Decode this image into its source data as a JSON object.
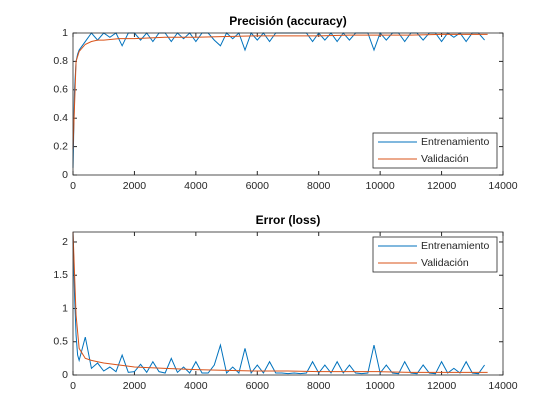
{
  "chart_data": [
    {
      "type": "line",
      "title": "Precisión (accuracy)",
      "xlim": [
        0,
        14000
      ],
      "xticks": [
        0,
        2000,
        4000,
        6000,
        8000,
        10000,
        12000,
        14000
      ],
      "ylim": [
        0,
        1
      ],
      "yticks": [
        0,
        0.2,
        0.4,
        0.6,
        0.8,
        1
      ],
      "legend": "southeast",
      "box": true,
      "series": [
        {
          "name": "Entrenamiento",
          "color": "#0072bd",
          "x": [
            0,
            50,
            100,
            150,
            200,
            400,
            600,
            800,
            1000,
            1200,
            1400,
            1600,
            1800,
            2000,
            2200,
            2400,
            2600,
            2800,
            3000,
            3200,
            3400,
            3600,
            3800,
            4000,
            4200,
            4400,
            4600,
            4800,
            5000,
            5200,
            5400,
            5600,
            5800,
            6000,
            6200,
            6400,
            6600,
            6800,
            7000,
            7200,
            7400,
            7600,
            7800,
            8000,
            8200,
            8400,
            8600,
            8800,
            9000,
            9200,
            9400,
            9600,
            9800,
            10000,
            10200,
            10400,
            10600,
            10800,
            11000,
            11200,
            11400,
            11600,
            11800,
            12000,
            12200,
            12400,
            12600,
            12800,
            13000,
            13200,
            13400
          ],
          "values": [
            0.05,
            0.6,
            0.8,
            0.85,
            0.88,
            0.94,
            1,
            0.95,
            1,
            0.97,
            1,
            0.91,
            1,
            1,
            0.95,
            1,
            0.94,
            1,
            1,
            0.94,
            1,
            0.96,
            1,
            0.94,
            1,
            1,
            0.95,
            0.91,
            1,
            0.96,
            1,
            0.88,
            1,
            0.95,
            1,
            0.94,
            1,
            1,
            1,
            1,
            1,
            1,
            0.94,
            1,
            0.95,
            1,
            0.94,
            1,
            0.95,
            1,
            1,
            1,
            0.88,
            1,
            0.95,
            1,
            1,
            0.94,
            1,
            1,
            0.95,
            1,
            1,
            0.94,
            1,
            0.97,
            1,
            0.94,
            1,
            1,
            0.95
          ]
        },
        {
          "name": "Validación",
          "color": "#d95319",
          "x": [
            0,
            100,
            200,
            400,
            600,
            800,
            1000,
            1500,
            2000,
            3000,
            4000,
            5000,
            6000,
            7000,
            8000,
            9000,
            10000,
            11000,
            12000,
            13000,
            13500
          ],
          "values": [
            0.18,
            0.8,
            0.87,
            0.92,
            0.94,
            0.95,
            0.95,
            0.96,
            0.96,
            0.97,
            0.97,
            0.975,
            0.98,
            0.98,
            0.98,
            0.985,
            0.985,
            0.985,
            0.99,
            0.99,
            0.99
          ]
        }
      ]
    },
    {
      "type": "line",
      "title": "Error (loss)",
      "xlim": [
        0,
        14000
      ],
      "xticks": [
        0,
        2000,
        4000,
        6000,
        8000,
        10000,
        12000,
        14000
      ],
      "ylim": [
        0,
        2.15
      ],
      "yticks": [
        0,
        0.5,
        1,
        1.5,
        2
      ],
      "legend": "northeast",
      "box": true,
      "series": [
        {
          "name": "Entrenamiento",
          "color": "#0072bd",
          "x": [
            0,
            50,
            100,
            150,
            200,
            400,
            600,
            800,
            1000,
            1200,
            1400,
            1600,
            1800,
            2000,
            2200,
            2400,
            2600,
            2800,
            3000,
            3200,
            3400,
            3600,
            3800,
            4000,
            4200,
            4400,
            4600,
            4800,
            5000,
            5200,
            5400,
            5600,
            5800,
            6000,
            6200,
            6400,
            6600,
            6800,
            7000,
            7200,
            7400,
            7600,
            7800,
            8000,
            8200,
            8400,
            8600,
            8800,
            9000,
            9200,
            9400,
            9600,
            9800,
            10000,
            10200,
            10400,
            10600,
            10800,
            11000,
            11200,
            11400,
            11600,
            11800,
            12000,
            12200,
            12400,
            12600,
            12800,
            13000,
            13200,
            13400
          ],
          "values": [
            2.15,
            1.2,
            0.6,
            0.3,
            0.22,
            0.57,
            0.1,
            0.18,
            0.06,
            0.12,
            0.05,
            0.3,
            0.04,
            0.05,
            0.16,
            0.04,
            0.2,
            0.05,
            0.03,
            0.25,
            0.04,
            0.12,
            0.03,
            0.2,
            0.03,
            0.03,
            0.15,
            0.45,
            0.03,
            0.12,
            0.03,
            0.4,
            0.03,
            0.15,
            0.03,
            0.2,
            0.03,
            0.03,
            0.02,
            0.03,
            0.02,
            0.03,
            0.2,
            0.03,
            0.15,
            0.03,
            0.2,
            0.03,
            0.15,
            0.03,
            0.02,
            0.03,
            0.45,
            0.03,
            0.15,
            0.03,
            0.02,
            0.2,
            0.03,
            0.02,
            0.15,
            0.03,
            0.02,
            0.2,
            0.03,
            0.1,
            0.03,
            0.2,
            0.03,
            0.02,
            0.15
          ]
        },
        {
          "name": "Validación",
          "color": "#d95319",
          "x": [
            0,
            100,
            200,
            400,
            600,
            800,
            1000,
            1500,
            2000,
            3000,
            4000,
            5000,
            6000,
            7000,
            8000,
            9000,
            10000,
            11000,
            12000,
            13000,
            13500
          ],
          "values": [
            2.15,
            0.9,
            0.4,
            0.25,
            0.22,
            0.2,
            0.18,
            0.15,
            0.12,
            0.1,
            0.08,
            0.07,
            0.06,
            0.06,
            0.05,
            0.05,
            0.05,
            0.04,
            0.04,
            0.04,
            0.04
          ]
        }
      ]
    }
  ]
}
